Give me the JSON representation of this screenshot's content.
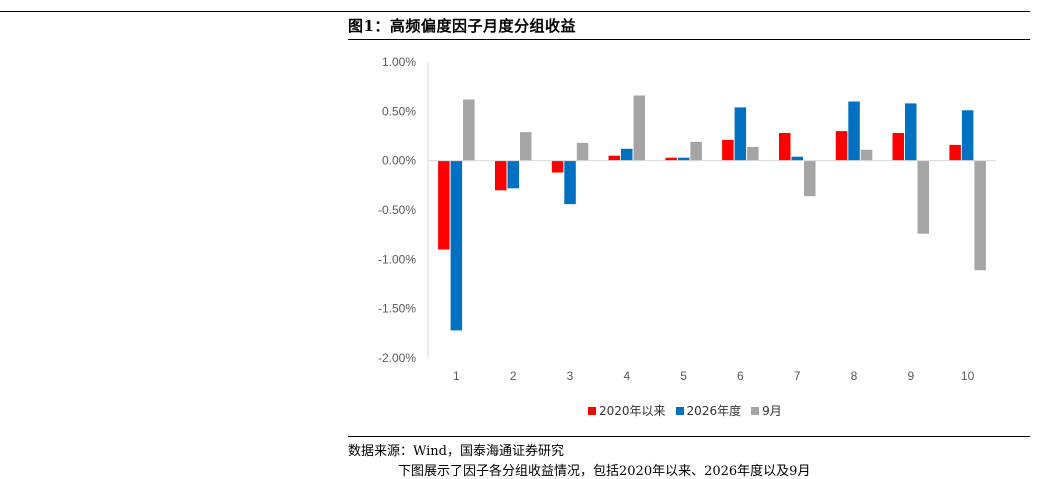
{
  "header": {
    "title": "图1：高频偏度因子月度分组收益"
  },
  "footer": {
    "source": "数据来源：Wind，国泰海通证券研究",
    "body_text": "下图展示了因子各分组收益情况，包括2020年以来、2026年度以及9月"
  },
  "colors": {
    "series1": "#ff0000",
    "series2": "#0070c0",
    "series3": "#a5a5a5"
  },
  "chart_data": {
    "type": "bar",
    "title": "图1：高频偏度因子月度分组收益",
    "xlabel": "",
    "ylabel": "",
    "categories": [
      "1",
      "2",
      "3",
      "4",
      "5",
      "6",
      "7",
      "8",
      "9",
      "10"
    ],
    "ylim": [
      -2.0,
      1.0
    ],
    "yticks": [
      "1.00%",
      "0.50%",
      "0.00%",
      "-0.50%",
      "-1.00%",
      "-1.50%",
      "-2.00%"
    ],
    "grid": false,
    "legend_position": "bottom",
    "series": [
      {
        "name": "2020年以来",
        "color": "#ff0000",
        "values": [
          -0.9,
          -0.3,
          -0.12,
          0.05,
          0.03,
          0.21,
          0.28,
          0.3,
          0.28,
          0.16
        ]
      },
      {
        "name": "2026年度",
        "color": "#0070c0",
        "values": [
          -1.72,
          -0.28,
          -0.44,
          0.12,
          0.03,
          0.54,
          0.04,
          0.6,
          0.58,
          0.51
        ]
      },
      {
        "name": "9月",
        "color": "#a5a5a5",
        "values": [
          0.62,
          0.29,
          0.18,
          0.66,
          0.19,
          0.14,
          -0.36,
          0.11,
          -0.74,
          -1.11
        ]
      }
    ]
  }
}
